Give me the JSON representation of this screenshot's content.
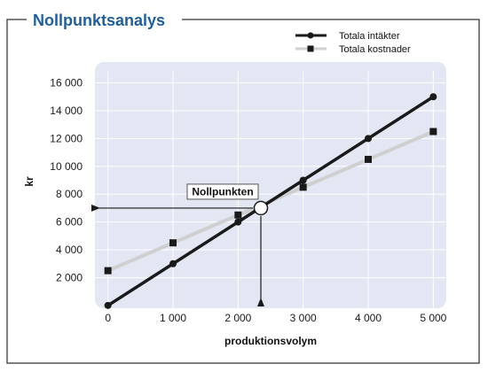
{
  "chart_data": {
    "type": "line",
    "title": "Nollpunktsanalys",
    "xlabel": "produktionsvolym",
    "ylabel": "kr",
    "x": [
      0,
      1000,
      2000,
      3000,
      4000,
      5000
    ],
    "xticks": [
      0,
      1000,
      2000,
      3000,
      4000,
      5000
    ],
    "xtick_labels": [
      "0",
      "1 000",
      "2 000",
      "3 000",
      "4 000",
      "5 000"
    ],
    "yticks": [
      2000,
      4000,
      6000,
      8000,
      10000,
      12000,
      14000,
      16000
    ],
    "ytick_labels": [
      "2 000",
      "4 000",
      "6 000",
      "8 000",
      "10 000",
      "12 000",
      "14 000",
      "16 000"
    ],
    "xlim": [
      -200,
      5200
    ],
    "ylim": [
      -200,
      17500
    ],
    "grid": true,
    "legend_position": "top-right",
    "series": [
      {
        "name": "Totala intäkter",
        "values": [
          0,
          3000,
          6000,
          9000,
          12000,
          15000
        ],
        "color": "#1a1a1a",
        "marker": "circle"
      },
      {
        "name": "Totala kostnader",
        "values": [
          2500,
          4500,
          6500,
          8500,
          10500,
          12500
        ],
        "color": "#cfcfcf",
        "marker": "square"
      }
    ],
    "annotation": {
      "label": "Nollpunkten",
      "x": 2350,
      "y": 7000
    },
    "colors": {
      "title": "#1f5fa0",
      "plot_background": "#e3e7f3",
      "grid": "#ffffff",
      "frame": "#555555"
    }
  }
}
